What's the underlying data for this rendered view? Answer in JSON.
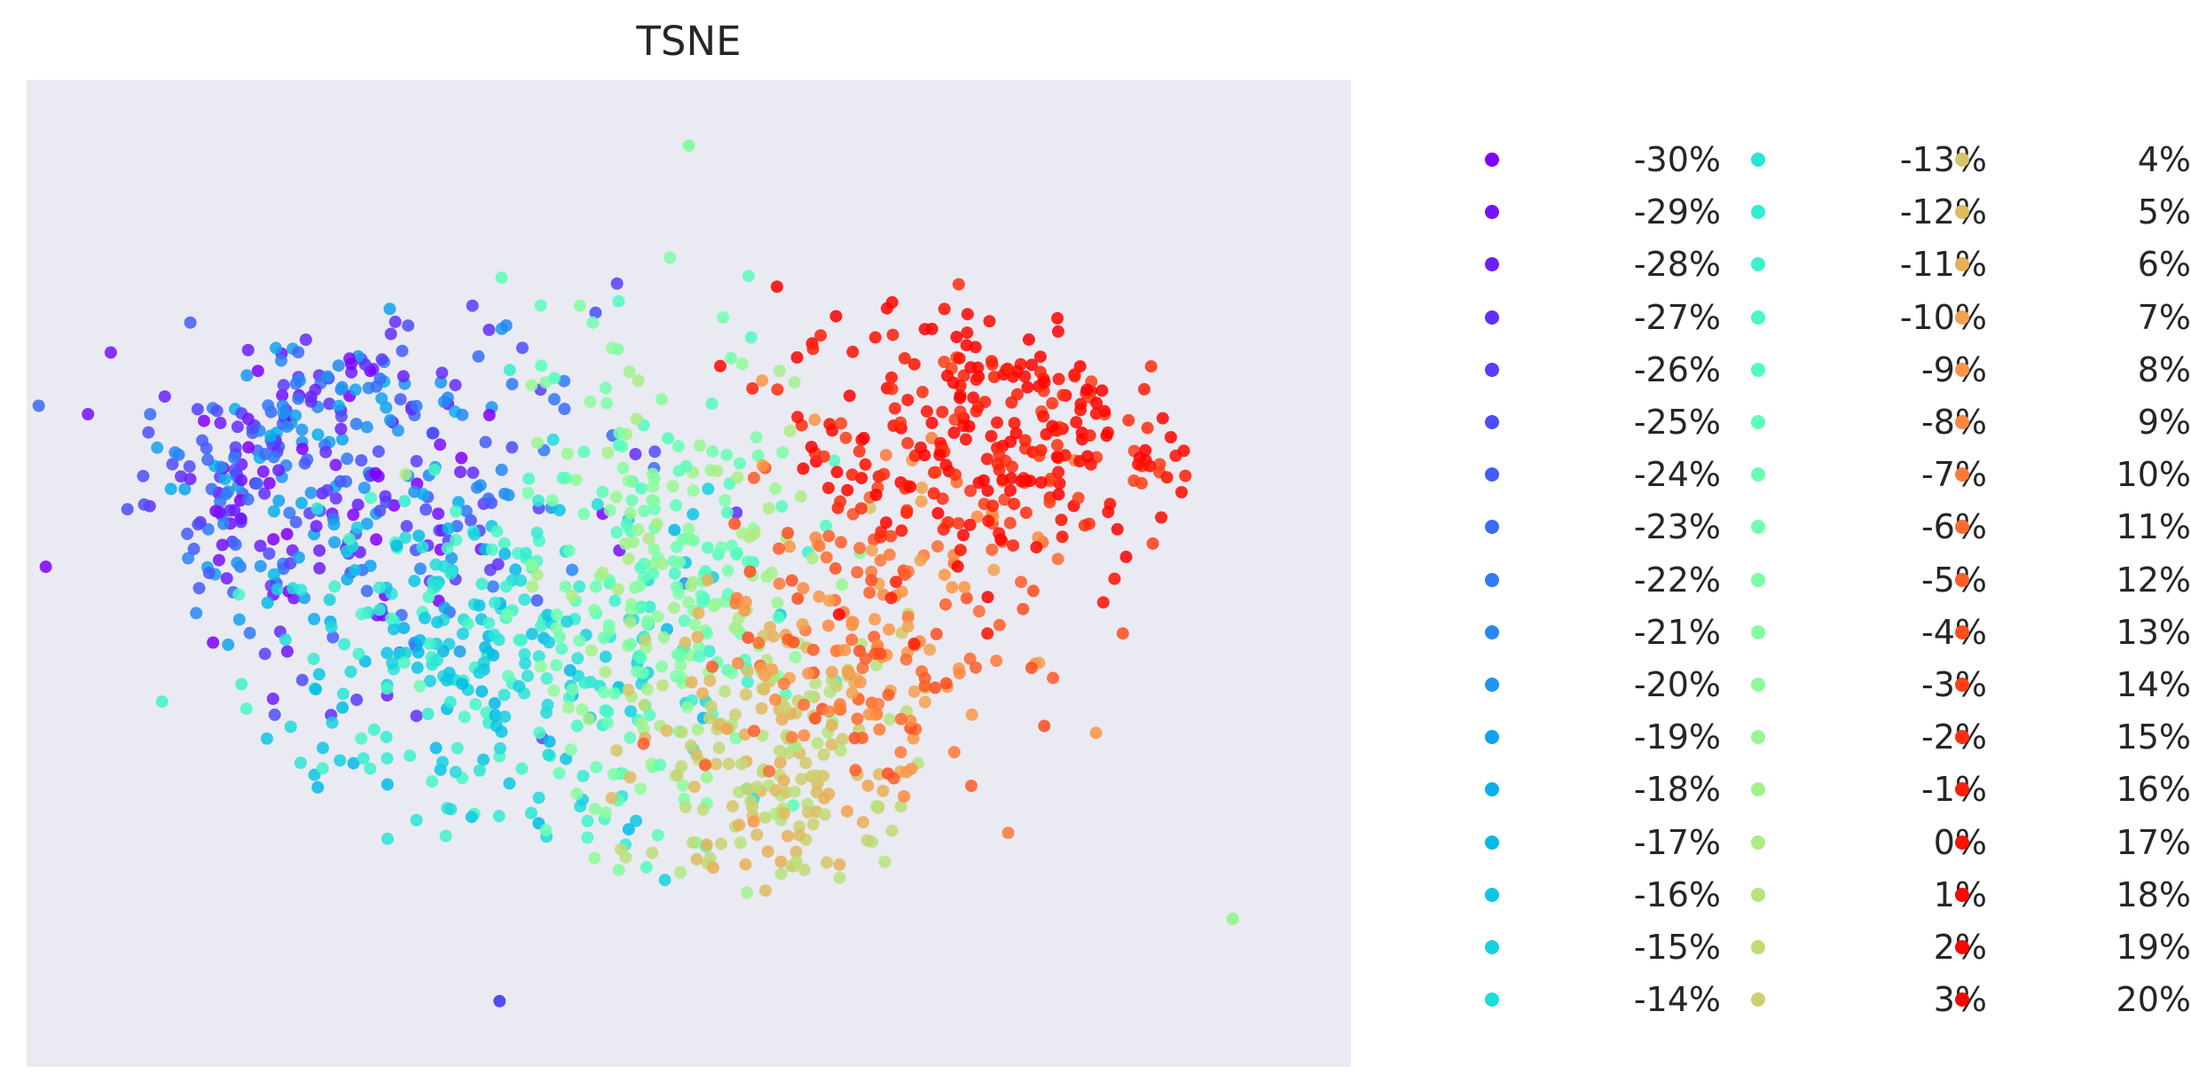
{
  "chart_data": {
    "type": "scatter",
    "title": "TSNE",
    "xlabel": "",
    "ylabel": "",
    "grid": false,
    "background": "#eaeaf2",
    "colormap": "rainbow",
    "legend_position": "right, outside plot, 3 columns",
    "legend": [
      "-30%",
      "-29%",
      "-28%",
      "-27%",
      "-26%",
      "-25%",
      "-24%",
      "-23%",
      "-22%",
      "-21%",
      "-20%",
      "-19%",
      "-18%",
      "-17%",
      "-16%",
      "-15%",
      "-14%",
      "-13%",
      "-12%",
      "-11%",
      "-10%",
      "-9%",
      "-8%",
      "-7%",
      "-6%",
      "-5%",
      "-4%",
      "-3%",
      "-2%",
      "-1%",
      "0%",
      "1%",
      "2%",
      "3%",
      "4%",
      "5%",
      "6%",
      "7%",
      "8%",
      "9%",
      "10%",
      "11%",
      "12%",
      "13%",
      "14%",
      "15%",
      "16%",
      "17%",
      "18%",
      "19%",
      "20%"
    ],
    "colors": [
      "#8000ff",
      "#7610ff",
      "#6c1fff",
      "#622ffe",
      "#583efd",
      "#4e4dfc",
      "#445cfb",
      "#3a6bf9",
      "#3079f7",
      "#2687f5",
      "#1c95f2",
      "#12a2ef",
      "#08afec",
      "#02bbe8",
      "#0cc7e4",
      "#16d1df",
      "#20dbdb",
      "#2ae4d6",
      "#34ecd1",
      "#3ef2cb",
      "#48f7c6",
      "#52fbc0",
      "#5cfdba",
      "#66ffb4",
      "#70ffad",
      "#7affa7",
      "#84fda0",
      "#8efb99",
      "#98f792",
      "#a2f28b",
      "#acec84",
      "#b6e47d",
      "#c0db76",
      "#cad16e",
      "#d4c767",
      "#debb5f",
      "#e8af57",
      "#f2a24f",
      "#fc9547",
      "#ff873f",
      "#ff7937",
      "#ff6b2f",
      "#ff5c27",
      "#ff4d1e",
      "#ff3e16",
      "#ff2f0e",
      "#ff1f06",
      "#ff1000",
      "#ff0800",
      "#ff0400",
      "#ff0000"
    ],
    "clusters": [
      {
        "group": "blue-purple",
        "x": -16,
        "y": 6,
        "spread_x": 10,
        "spread_y": 11,
        "count": 380,
        "values": "-30%..-18%"
      },
      {
        "group": "cyan",
        "x": -9,
        "y": -5,
        "spread_x": 10,
        "spread_y": 10,
        "count": 300,
        "values": "-17%..-10%"
      },
      {
        "group": "mint-green",
        "x": -1,
        "y": -1,
        "spread_x": 6,
        "spread_y": 14,
        "count": 280,
        "values": "-9%..0%"
      },
      {
        "group": "yellow-green",
        "x": 4,
        "y": -11,
        "spread_x": 5,
        "spread_y": 8,
        "count": 180,
        "values": "1%..6%"
      },
      {
        "group": "orange",
        "x": 8,
        "y": -4,
        "spread_x": 6,
        "spread_y": 10,
        "count": 200,
        "values": "7%..13%"
      },
      {
        "group": "red",
        "x": 13,
        "y": 8,
        "spread_x": 8,
        "spread_y": 8,
        "count": 280,
        "values": "14%..20%"
      }
    ],
    "outliers": [
      {
        "x": 23,
        "y": -21,
        "value": "-2%"
      },
      {
        "x": -8,
        "y": -26,
        "value": "-25%"
      },
      {
        "x": 0,
        "y": 26,
        "value": "-4%"
      }
    ],
    "xlim": [
      -28,
      28
    ],
    "ylim": [
      -30,
      30
    ]
  }
}
